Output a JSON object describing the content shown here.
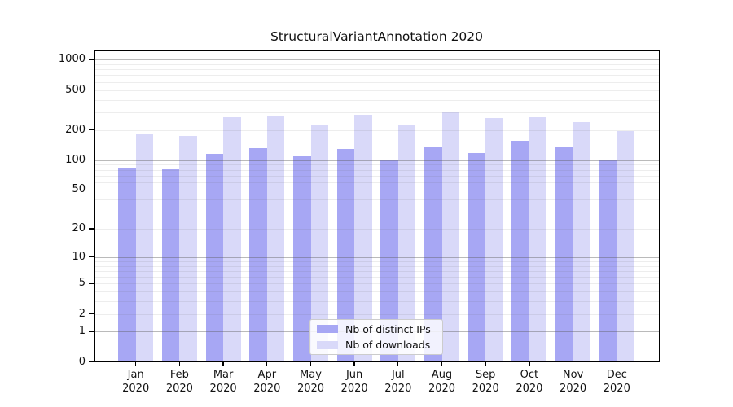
{
  "title": "StructuralVariantAnnotation 2020",
  "legend": {
    "items": [
      {
        "label": "Nb of distinct IPs",
        "color": "#a7a7f4"
      },
      {
        "label": "Nb of downloads",
        "color": "#d9d9f9"
      }
    ],
    "position": "lower center"
  },
  "chart_data": {
    "type": "bar",
    "title": "StructuralVariantAnnotation 2020",
    "categories": [
      "Jan",
      "Feb",
      "Mar",
      "Apr",
      "May",
      "Jun",
      "Jul",
      "Aug",
      "Sep",
      "Oct",
      "Nov",
      "Dec"
    ],
    "year_label": "2020",
    "series": [
      {
        "name": "Nb of distinct IPs",
        "color": "#a7a7f4",
        "values": [
          83,
          81,
          117,
          132,
          110,
          131,
          101,
          135,
          119,
          158,
          134,
          100
        ]
      },
      {
        "name": "Nb of downloads",
        "color": "#d9d9f9",
        "values": [
          182,
          175,
          269,
          280,
          227,
          284,
          227,
          301,
          266,
          271,
          243,
          195
        ]
      }
    ],
    "xlabel": "",
    "ylabel": "",
    "yscale": "log1p",
    "yticks": [
      0,
      1,
      2,
      5,
      10,
      20,
      50,
      100,
      200,
      500,
      1000
    ],
    "ylim": [
      0,
      1250
    ],
    "grid": "horizontal major+minor, drawn over bars",
    "legend_position": "lower center"
  }
}
